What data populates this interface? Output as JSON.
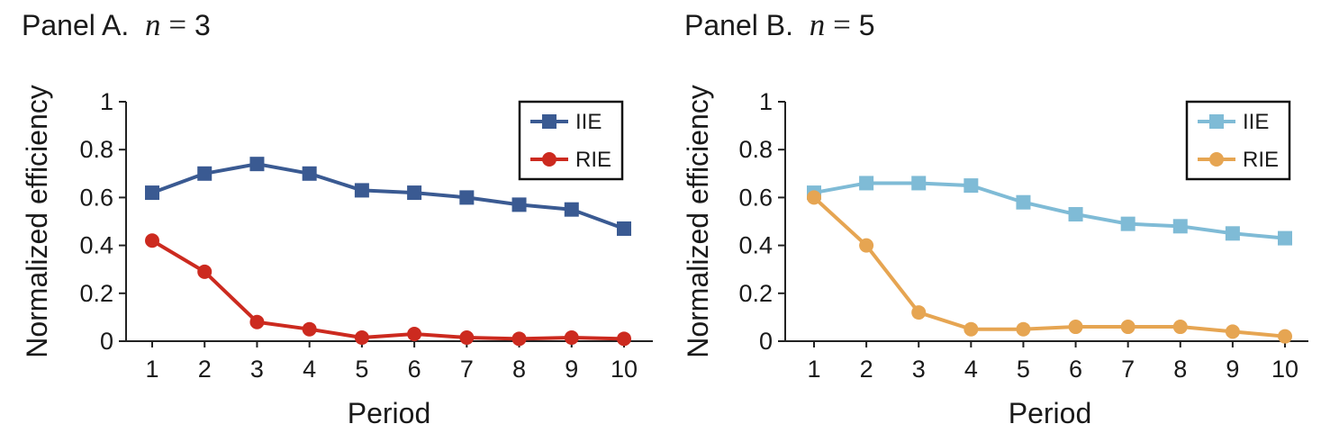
{
  "panels": [
    {
      "title_prefix": "Panel A.",
      "title_var": "n",
      "title_eq": "=",
      "title_val": "3"
    },
    {
      "title_prefix": "Panel B.",
      "title_var": "n",
      "title_eq": "=",
      "title_val": "5"
    }
  ],
  "chart_data": [
    {
      "type": "line",
      "title": "Panel A. n = 3",
      "xlabel": "Period",
      "ylabel": "Normalized efficiency",
      "x": [
        1,
        2,
        3,
        4,
        5,
        6,
        7,
        8,
        9,
        10
      ],
      "ylim": [
        0,
        1
      ],
      "yticks": [
        "0",
        "0.2",
        "0.4",
        "0.6",
        "0.8",
        "1"
      ],
      "legend_position": "top-right",
      "series": [
        {
          "name": "IIE",
          "marker": "square",
          "color": "#3a5a92",
          "values": [
            0.62,
            0.7,
            0.74,
            0.7,
            0.63,
            0.62,
            0.6,
            0.57,
            0.55,
            0.47
          ]
        },
        {
          "name": "RIE",
          "marker": "circle",
          "color": "#cc2a1f",
          "values": [
            0.42,
            0.29,
            0.08,
            0.05,
            0.015,
            0.03,
            0.015,
            0.01,
            0.015,
            0.01
          ]
        }
      ]
    },
    {
      "type": "line",
      "title": "Panel B. n = 5",
      "xlabel": "Period",
      "ylabel": "Normalized efficiency",
      "x": [
        1,
        2,
        3,
        4,
        5,
        6,
        7,
        8,
        9,
        10
      ],
      "ylim": [
        0,
        1
      ],
      "yticks": [
        "0",
        "0.2",
        "0.4",
        "0.6",
        "0.8",
        "1"
      ],
      "legend_position": "top-right",
      "series": [
        {
          "name": "IIE",
          "marker": "square",
          "color": "#7fbbd6",
          "values": [
            0.62,
            0.66,
            0.66,
            0.65,
            0.58,
            0.53,
            0.49,
            0.48,
            0.45,
            0.43
          ]
        },
        {
          "name": "RIE",
          "marker": "circle",
          "color": "#e6a552",
          "values": [
            0.6,
            0.4,
            0.12,
            0.05,
            0.05,
            0.06,
            0.06,
            0.06,
            0.04,
            0.02
          ]
        }
      ]
    }
  ]
}
